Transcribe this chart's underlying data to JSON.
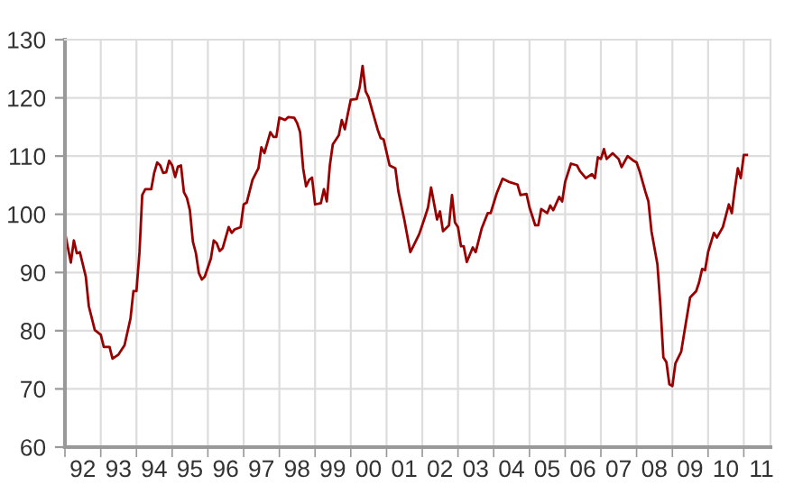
{
  "chart_data": {
    "type": "line",
    "color": "#990000",
    "grid": true,
    "marker": "none",
    "line_style": "solid",
    "xlim": [
      "1992-01",
      "2011-10"
    ],
    "ylim": [
      60,
      130
    ],
    "yticks": [
      60,
      70,
      80,
      90,
      100,
      110,
      120,
      130
    ],
    "xticks": [
      {
        "value": "1992-01",
        "label": null
      },
      {
        "value": "1992-07",
        "label": "92"
      },
      {
        "value": "1993-01",
        "label": null
      },
      {
        "value": "1993-07",
        "label": "93"
      },
      {
        "value": "1994-01",
        "label": null
      },
      {
        "value": "1994-07",
        "label": "94"
      },
      {
        "value": "1995-01",
        "label": null
      },
      {
        "value": "1995-07",
        "label": "95"
      },
      {
        "value": "1996-01",
        "label": null
      },
      {
        "value": "1996-07",
        "label": "96"
      },
      {
        "value": "1997-01",
        "label": null
      },
      {
        "value": "1997-07",
        "label": "97"
      },
      {
        "value": "1998-01",
        "label": null
      },
      {
        "value": "1998-07",
        "label": "98"
      },
      {
        "value": "1999-01",
        "label": null
      },
      {
        "value": "1999-07",
        "label": "99"
      },
      {
        "value": "2000-01",
        "label": null
      },
      {
        "value": "2000-07",
        "label": "00"
      },
      {
        "value": "2001-01",
        "label": null
      },
      {
        "value": "2001-07",
        "label": "01"
      },
      {
        "value": "2002-01",
        "label": null
      },
      {
        "value": "2002-07",
        "label": "02"
      },
      {
        "value": "2003-01",
        "label": null
      },
      {
        "value": "2003-07",
        "label": "03"
      },
      {
        "value": "2004-01",
        "label": null
      },
      {
        "value": "2004-07",
        "label": "04"
      },
      {
        "value": "2005-01",
        "label": null
      },
      {
        "value": "2005-07",
        "label": "05"
      },
      {
        "value": "2006-01",
        "label": null
      },
      {
        "value": "2006-07",
        "label": "06"
      },
      {
        "value": "2007-01",
        "label": null
      },
      {
        "value": "2007-07",
        "label": "07"
      },
      {
        "value": "2008-01",
        "label": null
      },
      {
        "value": "2008-07",
        "label": "08"
      },
      {
        "value": "2009-01",
        "label": null
      },
      {
        "value": "2009-07",
        "label": "09"
      },
      {
        "value": "2010-01",
        "label": null
      },
      {
        "value": "2010-07",
        "label": "10"
      },
      {
        "value": "2011-01",
        "label": null
      },
      {
        "value": "2011-07",
        "label": "11"
      }
    ],
    "x": [
      "1992-01",
      "1992-03",
      "1992-04",
      "1992-05",
      "1992-06",
      "1992-08",
      "1992-09",
      "1992-11",
      "1993-01",
      "1993-02",
      "1993-04",
      "1993-05",
      "1993-07",
      "1993-09",
      "1993-11",
      "1993-12",
      "1994-01",
      "1994-02",
      "1994-03",
      "1994-04",
      "1994-06",
      "1994-07",
      "1994-08",
      "1994-09",
      "1994-10",
      "1994-11",
      "1994-12",
      "1995-01",
      "1995-02",
      "1995-03",
      "1995-04",
      "1995-05",
      "1995-06",
      "1995-07",
      "1995-08",
      "1995-09",
      "1995-10",
      "1995-11",
      "1995-12",
      "1996-02",
      "1996-03",
      "1996-04",
      "1996-05",
      "1996-06",
      "1996-08",
      "1996-09",
      "1996-10",
      "1996-12",
      "1997-01",
      "1997-02",
      "1997-04",
      "1997-05",
      "1997-06",
      "1997-07",
      "1997-08",
      "1997-10",
      "1997-11",
      "1997-12",
      "1998-01",
      "1998-03",
      "1998-04",
      "1998-06",
      "1998-07",
      "1998-08",
      "1998-09",
      "1998-10",
      "1998-11",
      "1998-12",
      "1999-01",
      "1999-03",
      "1999-04",
      "1999-05",
      "1999-06",
      "1999-07",
      "1999-09",
      "1999-10",
      "1999-11",
      "1999-12",
      "2000-01",
      "2000-03",
      "2000-04",
      "2000-05",
      "2000-06",
      "2000-07",
      "2000-08",
      "2000-10",
      "2000-11",
      "2000-12",
      "2001-02",
      "2001-04",
      "2001-05",
      "2001-07",
      "2001-09",
      "2001-10",
      "2001-12",
      "2002-02",
      "2002-03",
      "2002-04",
      "2002-06",
      "2002-07",
      "2002-08",
      "2002-10",
      "2002-11",
      "2002-12",
      "2003-01",
      "2003-02",
      "2003-03",
      "2003-04",
      "2003-06",
      "2003-07",
      "2003-09",
      "2003-11",
      "2003-12",
      "2004-02",
      "2004-04",
      "2004-06",
      "2004-09",
      "2004-10",
      "2004-12",
      "2005-01",
      "2005-03",
      "2005-04",
      "2005-05",
      "2005-07",
      "2005-08",
      "2005-09",
      "2005-11",
      "2005-12",
      "2006-01",
      "2006-03",
      "2006-05",
      "2006-06",
      "2006-08",
      "2006-10",
      "2006-11",
      "2006-12",
      "2007-01",
      "2007-02",
      "2007-03",
      "2007-05",
      "2007-07",
      "2007-08",
      "2007-10",
      "2007-12",
      "2008-01",
      "2008-02",
      "2008-04",
      "2008-05",
      "2008-06",
      "2008-08",
      "2008-09",
      "2008-10",
      "2008-11",
      "2008-12",
      "2009-01",
      "2009-02",
      "2009-04",
      "2009-05",
      "2009-07",
      "2009-09",
      "2009-10",
      "2009-11",
      "2009-12",
      "2010-01",
      "2010-03",
      "2010-04",
      "2010-06",
      "2010-07",
      "2010-08",
      "2010-09",
      "2010-10",
      "2010-11",
      "2010-12",
      "2011-01",
      "2011-02"
    ],
    "values": [
      96.8,
      91.7,
      95.5,
      93.3,
      93.5,
      89.3,
      84.2,
      80.1,
      79.3,
      77.2,
      77.2,
      75.2,
      75.9,
      77.5,
      82.1,
      86.8,
      86.8,
      93.5,
      103.3,
      104.3,
      104.3,
      107.1,
      108.9,
      108.4,
      107.1,
      107.2,
      109.2,
      108.4,
      106.4,
      108.2,
      108.4,
      103.8,
      102.8,
      100.7,
      95.3,
      93.3,
      89.9,
      88.8,
      89.3,
      92.4,
      95.5,
      95.0,
      93.7,
      94.2,
      97.8,
      96.8,
      97.4,
      97.8,
      101.7,
      102.0,
      105.9,
      106.9,
      107.9,
      111.5,
      110.5,
      114.1,
      113.3,
      113.3,
      116.6,
      116.2,
      116.7,
      116.6,
      115.7,
      114.1,
      107.9,
      104.8,
      105.9,
      106.3,
      101.7,
      101.9,
      104.3,
      102.2,
      108.4,
      112.0,
      113.6,
      116.2,
      114.6,
      117.2,
      119.7,
      119.8,
      121.8,
      125.5,
      121.1,
      120.1,
      118.2,
      114.6,
      113.1,
      112.9,
      108.4,
      107.9,
      104.0,
      99.1,
      93.5,
      94.5,
      96.6,
      99.7,
      101.2,
      104.6,
      99.1,
      100.5,
      97.1,
      98.1,
      103.3,
      98.6,
      97.8,
      94.5,
      94.5,
      91.8,
      94.3,
      93.5,
      97.6,
      100.2,
      100.2,
      103.6,
      106.1,
      105.6,
      105.1,
      103.3,
      103.5,
      101.2,
      98.1,
      98.1,
      100.9,
      100.2,
      101.5,
      100.7,
      103.0,
      102.2,
      105.6,
      108.7,
      108.4,
      107.4,
      106.2,
      106.9,
      106.2,
      109.8,
      109.5,
      111.2,
      109.5,
      110.5,
      109.5,
      108.1,
      110.0,
      109.2,
      108.9,
      107.4,
      103.8,
      102.2,
      97.1,
      91.4,
      84.2,
      75.4,
      74.6,
      70.8,
      70.5,
      74.4,
      76.4,
      79.5,
      85.7,
      86.8,
      88.3,
      90.6,
      90.4,
      93.5,
      96.8,
      96.0,
      97.8,
      99.7,
      101.7,
      100.2,
      104.3,
      107.9,
      106.2,
      110.2,
      110.2
    ]
  }
}
